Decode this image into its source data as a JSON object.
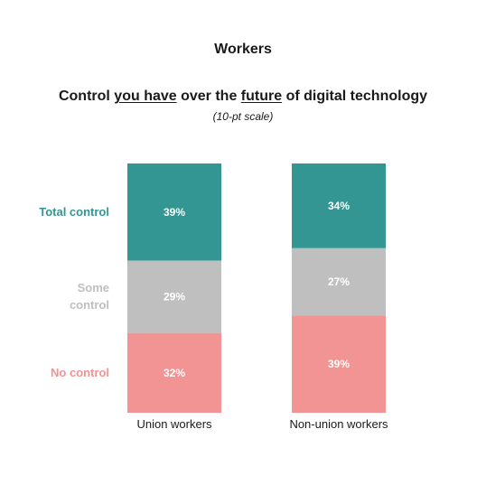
{
  "chart_data": {
    "type": "bar",
    "stacked": true,
    "title": "Workers",
    "subtitle_parts": [
      "Control ",
      "you have",
      " over the ",
      "future",
      " of digital technology"
    ],
    "note": "(10-pt scale)",
    "categories": [
      "Union workers",
      "Non-union workers"
    ],
    "series": [
      {
        "name": "Total control",
        "color": "#339693",
        "values": [
          39,
          34
        ],
        "labels": [
          "39%",
          "34%"
        ]
      },
      {
        "name": "Some control",
        "name_lines": [
          "Some",
          "control"
        ],
        "color": "#bfbfbf",
        "values": [
          29,
          27
        ],
        "labels": [
          "29%",
          "27%"
        ]
      },
      {
        "name": "No control",
        "color": "#f29394",
        "values": [
          32,
          39
        ],
        "labels": [
          "32%",
          "39%"
        ]
      }
    ],
    "ylim": [
      0,
      100
    ],
    "grid": false,
    "legend": "left"
  }
}
